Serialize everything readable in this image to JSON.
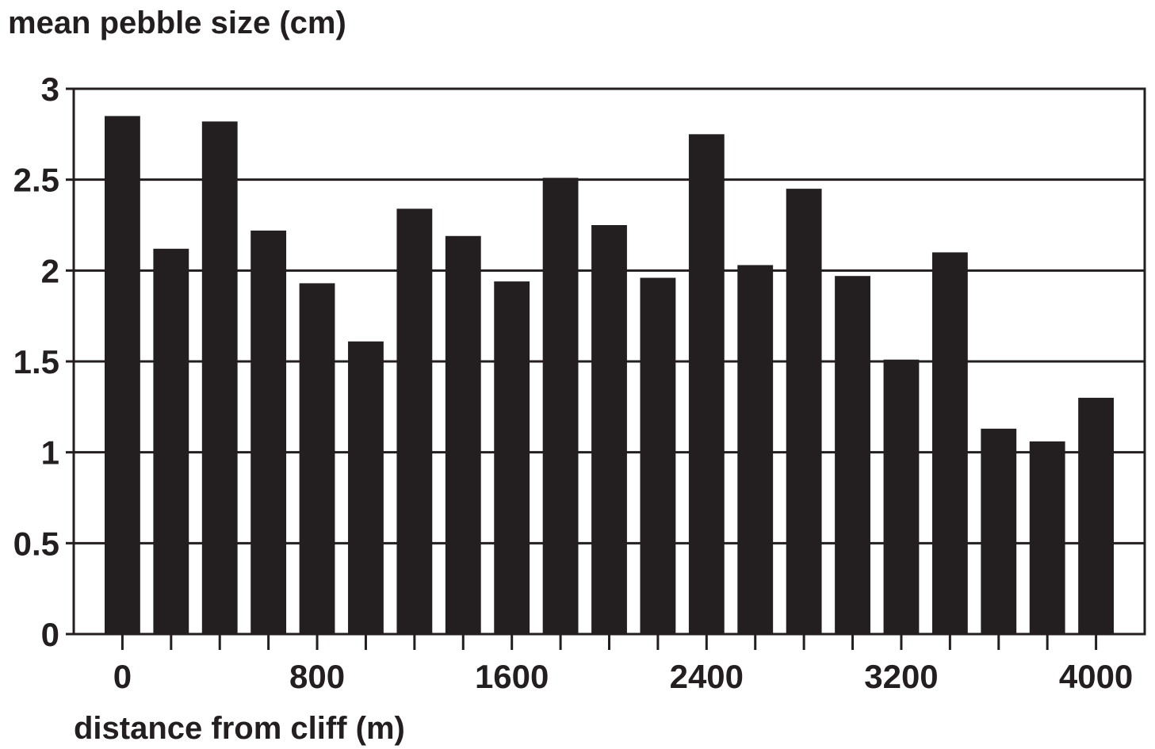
{
  "chart_data": {
    "type": "bar",
    "ylabel": "mean pebble size (cm)",
    "xlabel": "distance from cliff (m)",
    "x": [
      0,
      200,
      400,
      600,
      800,
      1000,
      1200,
      1400,
      1600,
      1800,
      2000,
      2200,
      2400,
      2600,
      2800,
      3000,
      3200,
      3400,
      3600,
      3800,
      4000
    ],
    "values": [
      2.85,
      2.12,
      2.82,
      2.22,
      1.93,
      1.61,
      2.34,
      2.19,
      1.94,
      2.51,
      2.25,
      1.96,
      2.75,
      2.03,
      2.45,
      1.97,
      1.51,
      2.1,
      1.13,
      1.06,
      1.3
    ],
    "ylim": [
      0,
      3
    ],
    "yticks": [
      "0",
      "0.5",
      "1",
      "1.5",
      "2",
      "2.5",
      "3"
    ],
    "xticks": [
      "0",
      "800",
      "1600",
      "2400",
      "3200",
      "4000"
    ],
    "xlim": [
      -200,
      4200
    ],
    "grid": "horizontal",
    "legend": "none",
    "bar_color": "#231f20",
    "grid_color": "#231f20"
  }
}
